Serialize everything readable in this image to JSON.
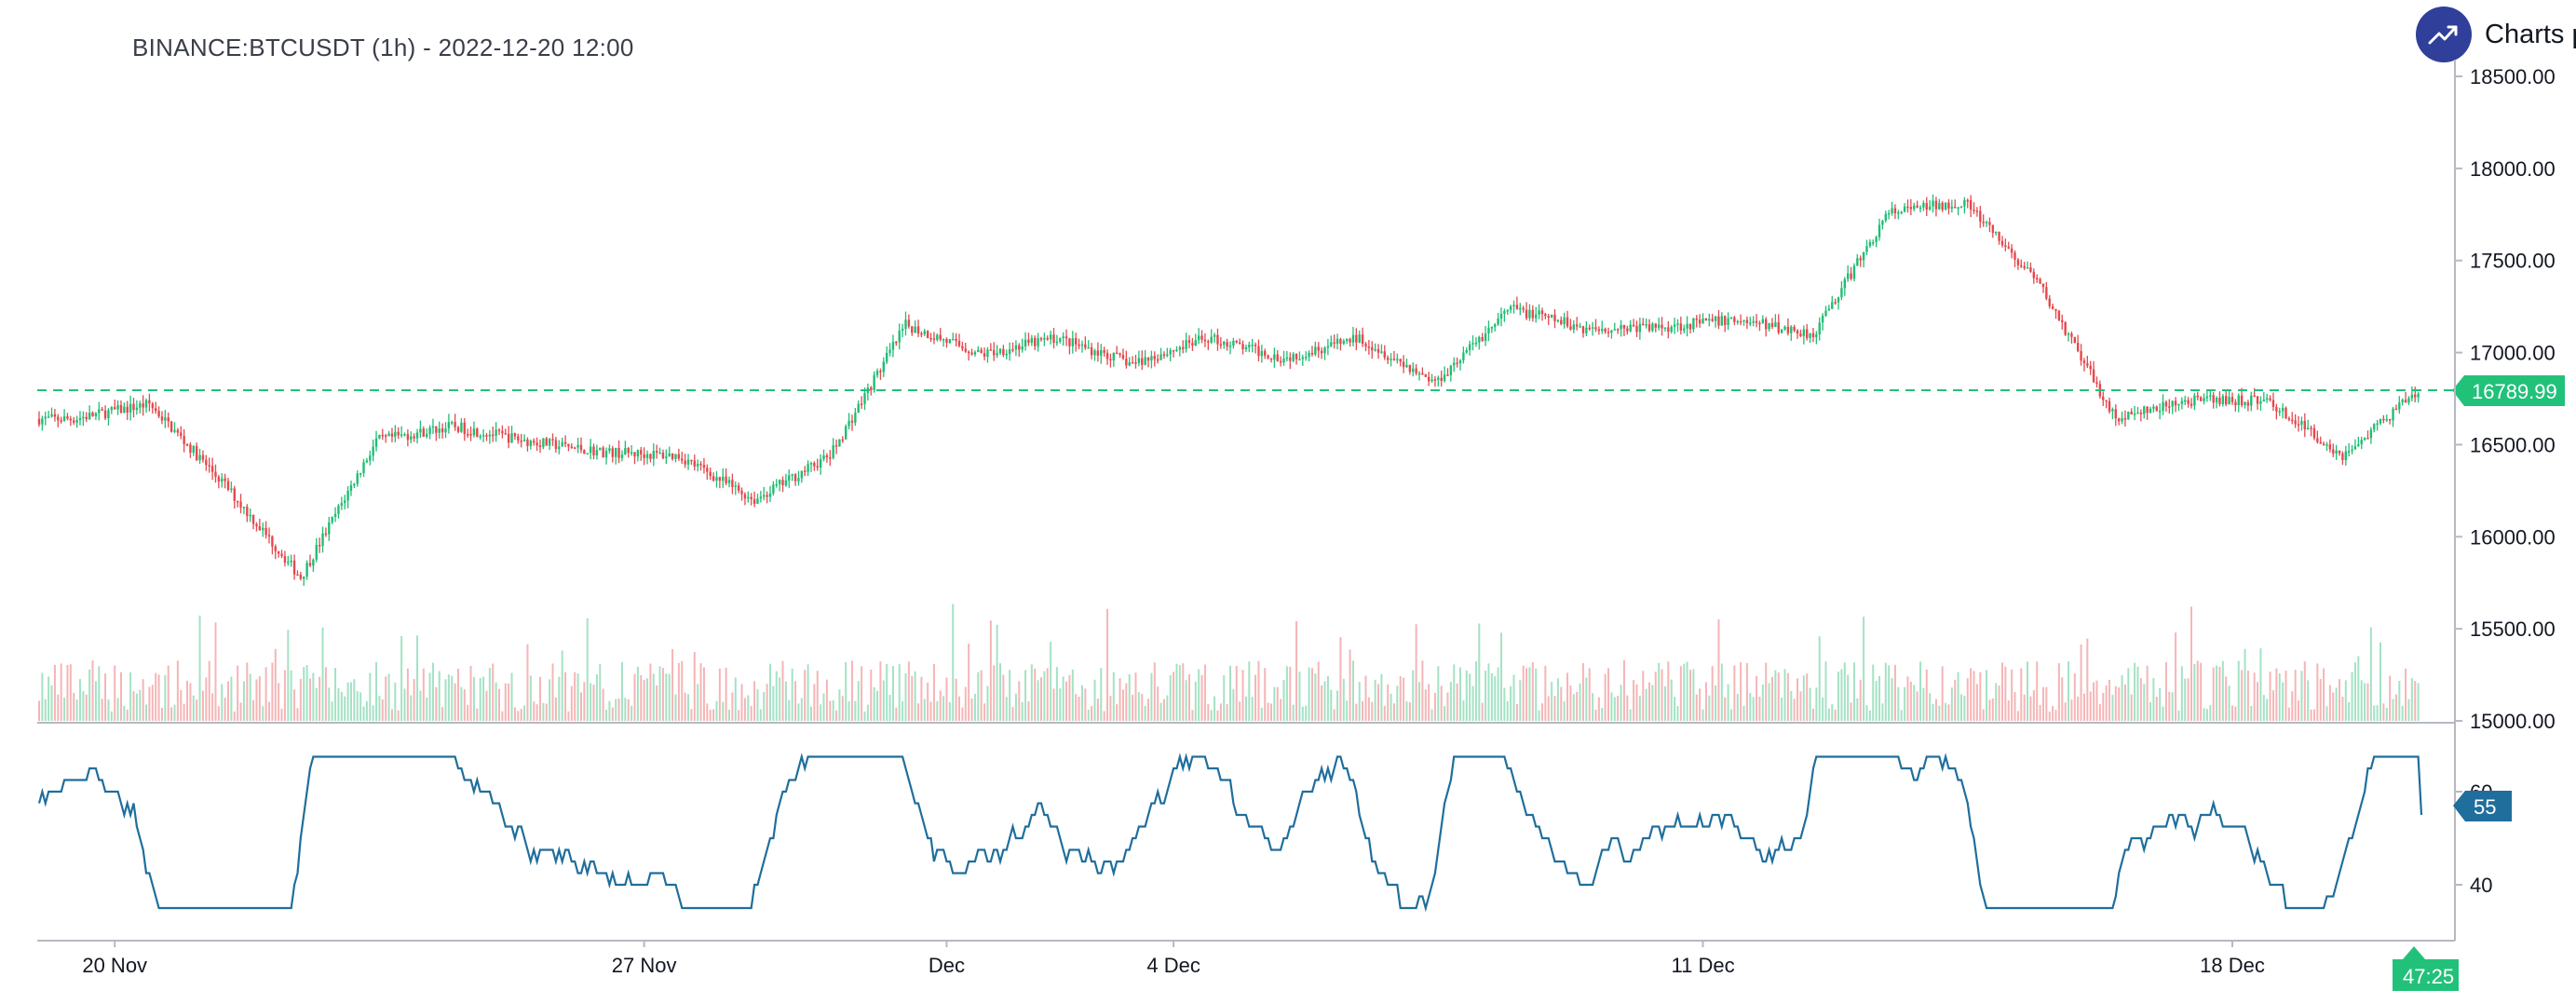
{
  "header": {
    "title": "BINANCE:BTCUSDT (1h) - 2022-12-20 12:00",
    "brand_text": "Charts p",
    "brand_icon": "trending-up-icon"
  },
  "chart_data": [
    {
      "type": "candlestick",
      "symbol": "BINANCE:BTCUSDT",
      "interval": "1h",
      "x_ticks": [
        "20 Nov",
        "27 Nov",
        "Dec",
        "4 Dec",
        "11 Dec",
        "18 Dec"
      ],
      "y_ticks": [
        "18500.00",
        "18000.00",
        "17500.00",
        "17000.00",
        "16500.00",
        "16000.00",
        "15500.00",
        "15000.00"
      ],
      "ylim": [
        15000,
        18500
      ],
      "last_price": 16789.99,
      "last_price_label": "16789.99",
      "countdown_label": "47:25",
      "price_path_daily_close": [
        {
          "date": "2022-11-19",
          "close": 16640
        },
        {
          "date": "2022-11-20",
          "close": 16720
        },
        {
          "date": "2022-11-21",
          "close": 16280
        },
        {
          "date": "2022-11-22",
          "close": 15780
        },
        {
          "date": "2022-11-23",
          "close": 16520
        },
        {
          "date": "2022-11-24",
          "close": 16600
        },
        {
          "date": "2022-11-25",
          "close": 16520
        },
        {
          "date": "2022-11-26",
          "close": 16460
        },
        {
          "date": "2022-11-27",
          "close": 16440
        },
        {
          "date": "2022-11-28",
          "close": 16200
        },
        {
          "date": "2022-11-29",
          "close": 16440
        },
        {
          "date": "2022-11-30",
          "close": 17150
        },
        {
          "date": "2022-12-01",
          "close": 16990
        },
        {
          "date": "2022-12-02",
          "close": 17080
        },
        {
          "date": "2022-12-03",
          "close": 16940
        },
        {
          "date": "2022-12-04",
          "close": 17080
        },
        {
          "date": "2022-12-05",
          "close": 16970
        },
        {
          "date": "2022-12-06",
          "close": 17080
        },
        {
          "date": "2022-12-07",
          "close": 16840
        },
        {
          "date": "2022-12-08",
          "close": 17240
        },
        {
          "date": "2022-12-09",
          "close": 17130
        },
        {
          "date": "2022-12-10",
          "close": 17140
        },
        {
          "date": "2022-12-11",
          "close": 17180
        },
        {
          "date": "2022-12-12",
          "close": 17100
        },
        {
          "date": "2022-12-13",
          "close": 17760
        },
        {
          "date": "2022-12-14",
          "close": 17820
        },
        {
          "date": "2022-12-15",
          "close": 17360
        },
        {
          "date": "2022-12-16",
          "close": 16640
        },
        {
          "date": "2022-12-17",
          "close": 16740
        },
        {
          "date": "2022-12-18",
          "close": 16740
        },
        {
          "date": "2022-12-19",
          "close": 16440
        },
        {
          "date": "2022-12-20",
          "close": 16790
        }
      ],
      "colors": {
        "up": "#26a69a",
        "down": "#ef5350",
        "candle_up": "#1fbe74",
        "candle_down": "#e5484d"
      }
    },
    {
      "type": "line",
      "name": "oscillator",
      "y_ticks": [
        "60",
        "40"
      ],
      "last_value_label": "55",
      "color": "#1f6e9c"
    }
  ]
}
